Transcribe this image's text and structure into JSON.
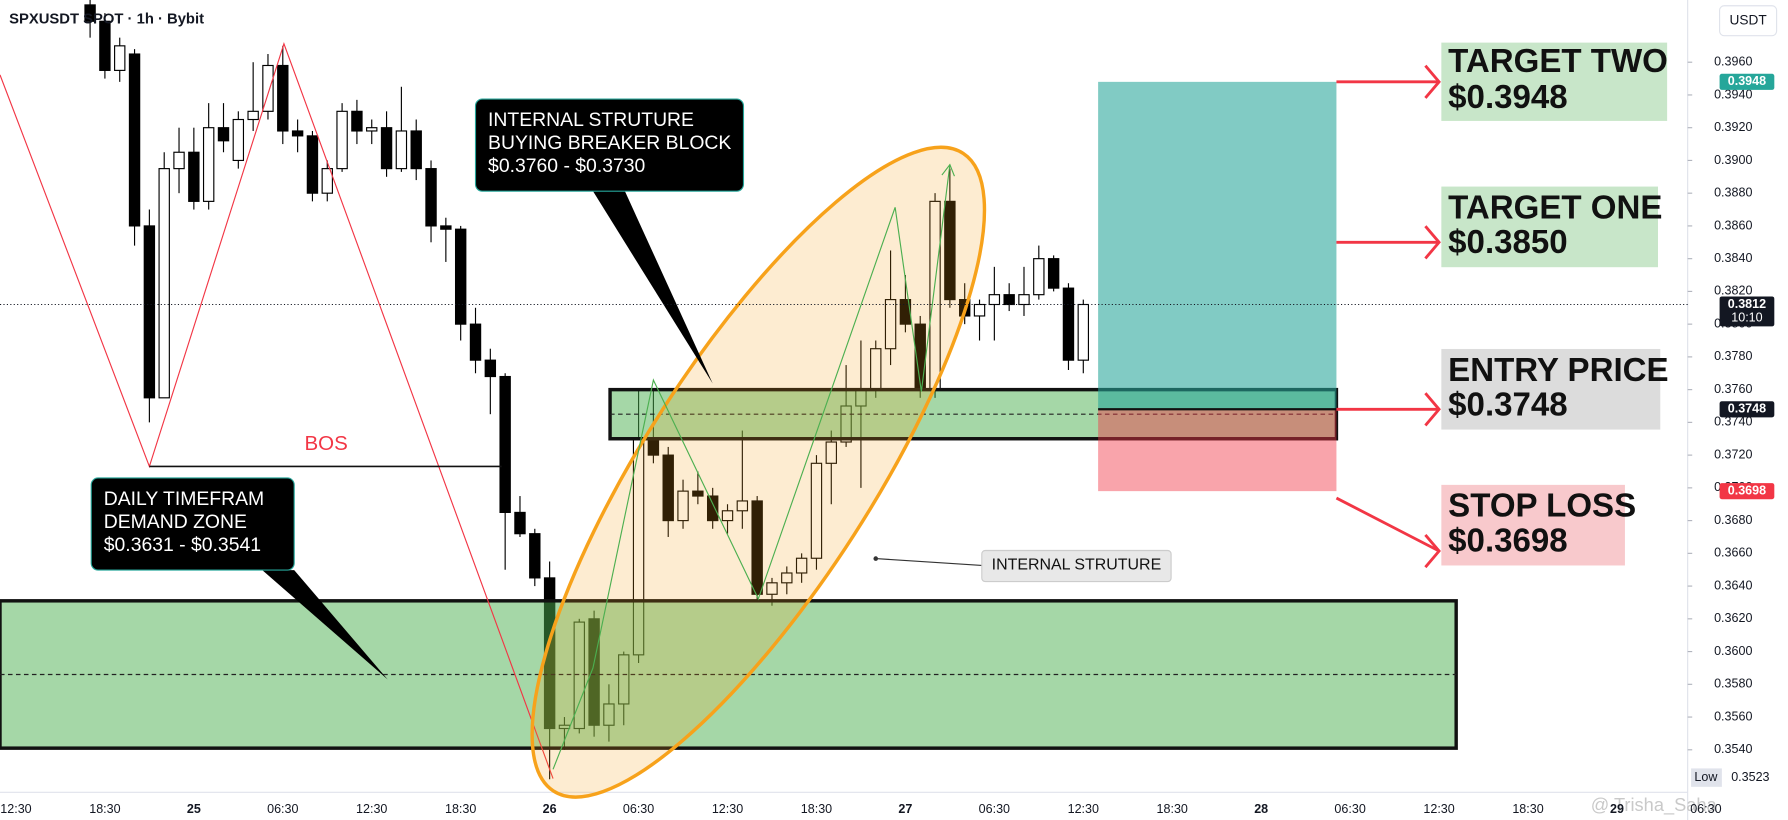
{
  "header": {
    "symbol": "SPXUSDT SPOT · 1h · Bybit",
    "currency": "USDT"
  },
  "chart_data": {
    "type": "candlestick",
    "categories": [
      "12:30",
      null,
      null,
      null,
      null,
      null,
      "18:30",
      null,
      null,
      null,
      null,
      null,
      "25",
      null,
      null,
      null,
      null,
      null,
      "06:30",
      null,
      null,
      null,
      null,
      null,
      "12:30",
      null,
      null,
      null,
      null,
      null,
      "18:30",
      null,
      null,
      null,
      null,
      null,
      "26",
      null,
      null,
      null,
      null,
      null,
      "06:30",
      null,
      null,
      null,
      null,
      null,
      "12:30",
      null,
      null,
      null,
      null,
      null,
      "18:30",
      null,
      null,
      null,
      null,
      null,
      "27",
      null,
      null,
      null,
      null,
      null,
      "06:30",
      null,
      null,
      null,
      null,
      null,
      "12:30",
      null,
      null,
      null,
      null,
      null,
      "18:30",
      null,
      null,
      null,
      null,
      null,
      "28",
      null,
      null,
      null,
      null,
      null,
      "06:30",
      null,
      null,
      null,
      null,
      null,
      "12:30",
      null,
      null,
      null,
      null,
      null,
      "18:30",
      null,
      null,
      null,
      null,
      null,
      "29",
      null,
      null,
      null,
      null,
      null,
      "06:30"
    ],
    "open": [
      null,
      null,
      null,
      null,
      null,
      0.3995,
      0.3985,
      0.3955,
      0.3965,
      0.386,
      0.3755,
      0.3895,
      0.3905,
      0.3875,
      0.392,
      0.39,
      0.3925,
      0.393,
      0.3958,
      0.3918,
      0.3915,
      0.388,
      0.3895,
      0.393,
      0.3918,
      0.392,
      0.3895,
      0.3918,
      0.3895,
      0.386,
      0.3858,
      0.38,
      0.3778,
      0.3768,
      0.3685,
      0.3672,
      0.3645,
      0.3553,
      0.3553,
      0.362,
      0.3555,
      0.3568,
      0.3598,
      0.373,
      0.372,
      0.368,
      0.3698,
      0.3695,
      0.368,
      0.3686,
      0.3692,
      0.3635,
      0.3642,
      0.3648,
      0.3657,
      0.3715,
      0.3728,
      0.375,
      0.376,
      0.3785,
      0.3815,
      0.38,
      0.376,
      0.3875,
      0.3815,
      0.3805,
      0.3812,
      0.3818,
      0.3812,
      0.3818,
      0.384,
      0.3822,
      0.3778,
      null,
      null,
      null,
      null,
      null,
      null,
      null,
      null,
      null,
      null,
      null,
      null,
      null,
      null,
      null,
      null,
      null,
      null,
      null,
      null,
      null,
      null,
      null,
      null,
      null,
      null,
      null,
      null,
      null,
      null,
      null,
      null,
      null,
      null,
      null,
      null,
      null,
      null,
      null,
      null,
      null,
      null
    ],
    "high": [
      null,
      null,
      null,
      null,
      null,
      0.3998,
      0.399,
      0.3975,
      0.3968,
      0.387,
      0.3905,
      0.392,
      0.392,
      0.3935,
      0.3935,
      0.393,
      0.396,
      0.3965,
      0.397,
      0.3925,
      0.3918,
      0.39,
      0.3935,
      0.3937,
      0.3925,
      0.393,
      0.3945,
      0.3925,
      0.39,
      0.3865,
      0.386,
      0.381,
      0.3785,
      0.377,
      0.3695,
      0.3675,
      0.3655,
      0.356,
      0.362,
      0.3625,
      0.358,
      0.36,
      0.376,
      0.376,
      0.3725,
      0.3705,
      0.371,
      0.37,
      0.369,
      0.3735,
      0.3695,
      0.3645,
      0.3652,
      0.366,
      0.372,
      0.3735,
      0.3775,
      0.379,
      0.379,
      0.3845,
      0.383,
      0.3805,
      0.388,
      0.3895,
      0.3825,
      0.3815,
      0.3835,
      0.3825,
      0.3835,
      0.3848,
      0.3842,
      0.3825,
      0.3815,
      null,
      null,
      null,
      null,
      null,
      null,
      null,
      null,
      null,
      null,
      null,
      null,
      null,
      null,
      null,
      null,
      null,
      null,
      null,
      null,
      null,
      null,
      null,
      null,
      null,
      null,
      null,
      null,
      null,
      null,
      null,
      null,
      null,
      null,
      null,
      null,
      null,
      null,
      null,
      null,
      null,
      null
    ],
    "low": [
      null,
      null,
      null,
      null,
      null,
      0.3975,
      0.395,
      0.3948,
      0.3848,
      0.374,
      0.3755,
      0.388,
      0.387,
      0.387,
      0.3905,
      0.3895,
      0.3918,
      0.3925,
      0.391,
      0.3905,
      0.3875,
      0.3875,
      0.3893,
      0.391,
      0.391,
      0.389,
      0.3893,
      0.3888,
      0.385,
      0.3838,
      0.379,
      0.377,
      0.3745,
      0.365,
      0.367,
      0.364,
      0.3522,
      0.354,
      0.355,
      0.3548,
      0.3545,
      0.3555,
      0.3593,
      0.3715,
      0.367,
      0.3675,
      0.369,
      0.3675,
      0.3672,
      0.3675,
      0.363,
      0.3628,
      0.3635,
      0.3642,
      0.365,
      0.369,
      0.3725,
      0.37,
      0.3755,
      0.3775,
      0.3795,
      0.3755,
      0.3755,
      0.381,
      0.38,
      0.379,
      0.379,
      0.3808,
      0.3805,
      0.3815,
      0.382,
      0.3772,
      0.377,
      null,
      null,
      null,
      null,
      null,
      null,
      null,
      null,
      null,
      null,
      null,
      null,
      null,
      null,
      null,
      null,
      null,
      null,
      null,
      null,
      null,
      null,
      null,
      null,
      null,
      null,
      null,
      null,
      null,
      null,
      null,
      null,
      null,
      null,
      null,
      null,
      null,
      null,
      null,
      null,
      null,
      null
    ],
    "close": [
      null,
      null,
      null,
      null,
      null,
      0.3985,
      0.3955,
      0.397,
      0.386,
      0.3755,
      0.3895,
      0.3905,
      0.3875,
      0.392,
      0.3912,
      0.3925,
      0.393,
      0.3958,
      0.3918,
      0.3915,
      0.388,
      0.3895,
      0.393,
      0.3918,
      0.392,
      0.3895,
      0.3918,
      0.3895,
      0.386,
      0.3858,
      0.38,
      0.3778,
      0.3768,
      0.3685,
      0.3672,
      0.3645,
      0.3553,
      0.3555,
      0.3618,
      0.3555,
      0.3568,
      0.3598,
      0.373,
      0.372,
      0.368,
      0.3698,
      0.3695,
      0.368,
      0.3686,
      0.3692,
      0.3635,
      0.3642,
      0.3648,
      0.3657,
      0.3715,
      0.3728,
      0.375,
      0.376,
      0.3785,
      0.3815,
      0.38,
      0.376,
      0.3875,
      0.3815,
      0.3805,
      0.3812,
      0.3818,
      0.3812,
      0.3818,
      0.384,
      0.3822,
      0.3778,
      0.3812,
      null,
      null,
      null,
      null,
      null,
      null,
      null,
      null,
      null,
      null,
      null,
      null,
      null,
      null,
      null,
      null,
      null,
      null,
      null,
      null,
      null,
      null,
      null,
      null,
      null,
      null,
      null,
      null,
      null,
      null,
      null,
      null,
      null,
      null,
      null,
      null,
      null,
      null,
      null,
      null,
      null,
      null
    ],
    "up_color": "#ffffff",
    "down_color": "#000000",
    "ylim": [
      0.3514,
      0.3998
    ],
    "yticks": [
      {
        "value": 0.354,
        "label": "0.3540"
      },
      {
        "value": 0.356,
        "label": "0.3560"
      },
      {
        "value": 0.358,
        "label": "0.3580"
      },
      {
        "value": 0.36,
        "label": "0.3600"
      },
      {
        "value": 0.362,
        "label": "0.3620"
      },
      {
        "value": 0.364,
        "label": "0.3640"
      },
      {
        "value": 0.366,
        "label": "0.3660"
      },
      {
        "value": 0.368,
        "label": "0.3680"
      },
      {
        "value": 0.37,
        "label": "0.3700"
      },
      {
        "value": 0.372,
        "label": "0.3720"
      },
      {
        "value": 0.374,
        "label": "0.3740"
      },
      {
        "value": 0.376,
        "label": "0.3760"
      },
      {
        "value": 0.378,
        "label": "0.3780"
      },
      {
        "value": 0.38,
        "label": "0.3800"
      },
      {
        "value": 0.382,
        "label": "0.3820"
      },
      {
        "value": 0.384,
        "label": "0.3840"
      },
      {
        "value": 0.386,
        "label": "0.3860"
      },
      {
        "value": 0.388,
        "label": "0.3880"
      },
      {
        "value": 0.39,
        "label": "0.3900"
      },
      {
        "value": 0.392,
        "label": "0.3920"
      },
      {
        "value": 0.394,
        "label": "0.3940"
      },
      {
        "value": 0.396,
        "label": "0.3960"
      }
    ],
    "price_markers": [
      {
        "value": 0.3948,
        "label": "0.3948",
        "color": "#26a69a"
      },
      {
        "value": 0.3812,
        "label": "0.3812",
        "sublabel": "10:10",
        "color": "#131722"
      },
      {
        "value": 0.3748,
        "label": "0.3748",
        "color": "#131722"
      },
      {
        "value": 0.3698,
        "label": "0.3698",
        "color": "#f23645"
      }
    ],
    "session_low": {
      "label": "Low",
      "value": 0.3523
    },
    "zones": [
      {
        "top": 0.3631,
        "bottom": 0.3541
      },
      {
        "top": 0.376,
        "bottom": 0.373
      }
    ],
    "position": {
      "target_two": 0.3948,
      "target_one": 0.385,
      "entry": 0.3748,
      "stop": 0.3698
    }
  },
  "annotations": {
    "bos": "BOS",
    "breaker_callout": [
      "INTERNAL STRUTURE",
      "BUYING BREAKER BLOCK",
      "$0.3760 - $0.3730"
    ],
    "demand_callout": [
      "DAILY TIMEFRAM",
      "DEMAND ZONE",
      "$0.3631 - $0.3541"
    ],
    "internal_label": "INTERNAL STRUTURE"
  },
  "trade_labels": [
    {
      "title": "TARGET TWO",
      "price": "$0.3948"
    },
    {
      "title": "TARGET ONE",
      "price": "$0.3850"
    },
    {
      "title": "ENTRY PRICE",
      "price": "$0.3748"
    },
    {
      "title": "STOP LOSS",
      "price": "$0.3698"
    }
  ],
  "watermark": "@ Trisha_Saha"
}
